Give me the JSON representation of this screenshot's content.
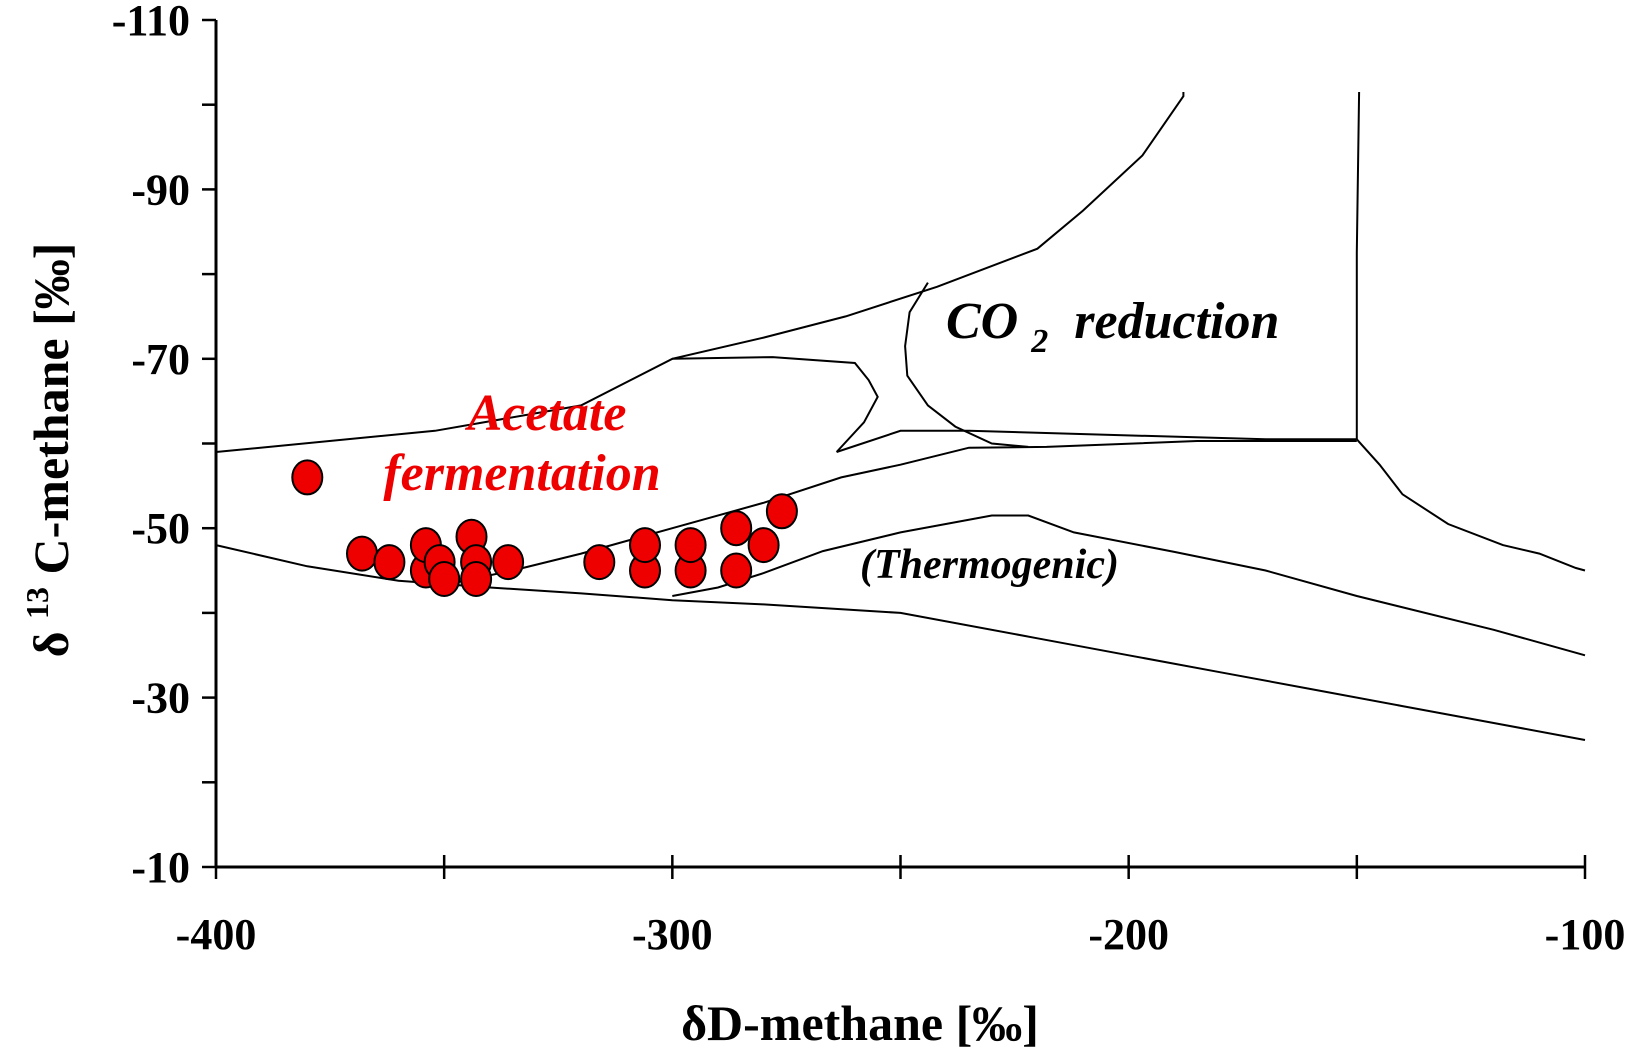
{
  "chart_data": {
    "type": "scatter",
    "xlabel": "δD-methane [‰]",
    "ylabel_prefix": "δ",
    "ylabel_sup": "13",
    "ylabel_main": "C-methane [‰]",
    "xlim": [
      -400,
      -100
    ],
    "ylim": [
      -10,
      -110
    ],
    "x_ticks": [
      -400,
      -300,
      -200,
      -100
    ],
    "x_tick_labels": [
      "-400",
      "-300",
      "-200",
      "-100"
    ],
    "x_minor_ticks": [
      -350,
      -250,
      -150
    ],
    "y_ticks": [
      -10,
      -30,
      -50,
      -70,
      -90,
      -110
    ],
    "y_tick_labels": [
      "-10",
      "-30",
      "-50",
      "-70",
      "-90",
      "-110"
    ],
    "y_minor_ticks": [
      -20,
      -40,
      -60,
      -80,
      -100
    ],
    "grid": false,
    "marker_color": "#ee0000",
    "series": [
      {
        "x": [
          -380,
          -368,
          -362,
          -354,
          -354,
          -351,
          -350,
          -344,
          -343,
          -343,
          -336,
          -316,
          -306,
          -306,
          -296,
          -296,
          -286,
          -286,
          -280,
          -276
        ],
        "y": [
          -56,
          -47,
          -46,
          -45,
          -48,
          -46,
          -44,
          -49,
          -46,
          -44,
          -46,
          -46,
          -45,
          -48,
          -45,
          -48,
          -45,
          -50,
          -48,
          -52
        ]
      }
    ],
    "annotations": [
      {
        "id": "co2",
        "text": "CO",
        "sub": "2",
        "rest": " reduction",
        "color": "#000000"
      },
      {
        "id": "acetate1",
        "text": "Acetate",
        "color": "#ee0000"
      },
      {
        "id": "acetate2",
        "text": "fermentation",
        "color": "#ee0000"
      },
      {
        "id": "thermo",
        "text": "(Thermogenic)",
        "color": "#000000"
      }
    ],
    "boundaries": [
      [
        [
          -400,
          -59
        ],
        [
          -352,
          -61.5
        ],
        [
          -320,
          -64.5
        ],
        [
          -300,
          -70
        ],
        [
          -280,
          -72.5
        ],
        [
          -262,
          -75
        ],
        [
          -242,
          -78.5
        ],
        [
          -220,
          -83
        ],
        [
          -210,
          -87.5
        ],
        [
          -197,
          -94
        ],
        [
          -188,
          -101
        ],
        [
          -188,
          -101.5
        ]
      ],
      [
        [
          -300,
          -70
        ],
        [
          -278,
          -70.2
        ],
        [
          -260,
          -69.5
        ],
        [
          -257,
          -67.5
        ],
        [
          -255,
          -65.5
        ],
        [
          -258,
          -62.5
        ],
        [
          -264,
          -59
        ]
      ],
      [
        [
          -264,
          -59
        ],
        [
          -250,
          -61.5
        ],
        [
          -235,
          -61.5
        ],
        [
          -170,
          -60.5
        ],
        [
          -150,
          -60.5
        ]
      ],
      [
        [
          -400,
          -48
        ],
        [
          -380,
          -45.5
        ],
        [
          -360,
          -43.8
        ],
        [
          -340,
          -43
        ],
        [
          -320,
          -42.3
        ],
        [
          -300,
          -41.5
        ],
        [
          -280,
          -41
        ],
        [
          -250,
          -40
        ],
        [
          -220,
          -37
        ],
        [
          -200,
          -35
        ],
        [
          -180,
          -33
        ],
        [
          -160,
          -31
        ],
        [
          -140,
          -29
        ],
        [
          -120,
          -27
        ],
        [
          -100,
          -25
        ]
      ],
      [
        [
          -350,
          -43.3
        ],
        [
          -335,
          -45
        ],
        [
          -320,
          -47
        ],
        [
          -300,
          -50
        ],
        [
          -280,
          -53
        ],
        [
          -263,
          -56
        ],
        [
          -250,
          -57.5
        ],
        [
          -235,
          -59.5
        ],
        [
          -218,
          -59.6
        ],
        [
          -185,
          -60.3
        ],
        [
          -150,
          -60.3
        ]
      ],
      [
        [
          -300,
          -42
        ],
        [
          -290,
          -43
        ],
        [
          -280,
          -44.7
        ],
        [
          -267,
          -47.3
        ],
        [
          -250,
          -49.5
        ],
        [
          -230,
          -51.5
        ],
        [
          -222,
          -51.5
        ],
        [
          -212,
          -49.5
        ],
        [
          -190,
          -47.2
        ],
        [
          -170,
          -45
        ],
        [
          -150,
          -42
        ],
        [
          -120,
          -38
        ],
        [
          -100,
          -35
        ]
      ],
      [
        [
          -150,
          -60.5
        ],
        [
          -145,
          -57.5
        ],
        [
          -140,
          -54
        ],
        [
          -130,
          -50.5
        ],
        [
          -118,
          -48
        ],
        [
          -110,
          -47
        ],
        [
          -102,
          -45.3
        ],
        [
          -100,
          -45
        ]
      ],
      [
        [
          -150,
          -60.5
        ],
        [
          -150,
          -76
        ],
        [
          -150,
          -82.5
        ],
        [
          -149.5,
          -101.5
        ]
      ],
      [
        [
          -244,
          -79
        ],
        [
          -248,
          -75.5
        ],
        [
          -249,
          -71.5
        ],
        [
          -248.5,
          -68
        ],
        [
          -244,
          -64.5
        ],
        [
          -238,
          -62
        ],
        [
          -230,
          -60
        ],
        [
          -222,
          -59.6
        ]
      ]
    ]
  }
}
